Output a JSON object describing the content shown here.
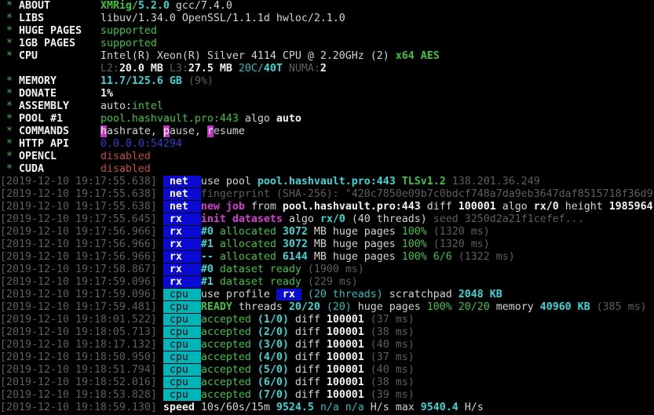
{
  "terminal": {
    "app": "XMRig console",
    "colors": {
      "white": "#d4d4d4",
      "white-bold": "#f2f2f2",
      "green": "#3ec43e",
      "cyan": "#2bbdbd",
      "cyan-bold": "#38d6d6",
      "magenta": "#d23fd2",
      "red": "#c44a4a",
      "gray": "#5f5f5f",
      "blue-text": "#3a3ad1",
      "tag-blue-bg": "#0a0ad2",
      "tag-teal-bg": "#00b5ba",
      "hotkey-bg": "#c433c4"
    },
    "summary": {
      "about": "XMRig/5.2.0 gcc/7.4.0",
      "libs": "libuv/1.34.0 OpenSSL/1.1.1d hwloc/2.1.0",
      "huge_pages": "supported",
      "one_gb_pages": "supported",
      "cpu": "Intel(R) Xeon(R) Silver 4114 CPU @ 2.20GHz (2) x64 AES",
      "cpu_cache": "L2:20.0 MB L3:27.5 MB 20C/40T NUMA:2",
      "memory": "11.7/125.6 GB (9%)",
      "donate": "1%",
      "assembly": "auto:intel",
      "pool1": "pool.hashvault.pro:443 algo auto",
      "commands": "hashrate, pause, resume",
      "http_api": "0.0.0.0:54294",
      "opencl": "disabled",
      "cuda": "disabled",
      "speed": "speed 10s/60s/15m 9524.5 n/a n/a H/s max 9540.4 H/s"
    },
    "lines": [
      {
        "name": "line-about",
        "segments": [
          [
            "g",
            " * "
          ],
          [
            "wb",
            "ABOUT        "
          ],
          [
            "gb",
            "XMRig/"
          ],
          [
            "cb",
            "5.2.0"
          ],
          [
            "w",
            " gcc/7.4.0"
          ]
        ]
      },
      {
        "name": "line-libs",
        "segments": [
          [
            "g",
            " * "
          ],
          [
            "wb",
            "LIBS         "
          ],
          [
            "w",
            "libuv/1.34.0 OpenSSL/1.1.1d hwloc/2.1.0"
          ]
        ]
      },
      {
        "name": "line-huge-pages",
        "segments": [
          [
            "g",
            " * "
          ],
          [
            "wb",
            "HUGE PAGES   "
          ],
          [
            "g",
            "supported"
          ]
        ]
      },
      {
        "name": "line-1gb-pages",
        "segments": [
          [
            "g",
            " * "
          ],
          [
            "wb",
            "1GB PAGES    "
          ],
          [
            "g",
            "supported"
          ]
        ]
      },
      {
        "name": "line-cpu",
        "segments": [
          [
            "g",
            " * "
          ],
          [
            "wb",
            "CPU          "
          ],
          [
            "w",
            "Intel(R) Xeon(R) Silver 4114 CPU @ 2.20GHz (2) "
          ],
          [
            "gb",
            "x64 AES"
          ]
        ]
      },
      {
        "name": "line-cpu-cache",
        "segments": [
          [
            "w",
            "                "
          ],
          [
            "gy",
            "L2:"
          ],
          [
            "wb",
            "20.0 MB "
          ],
          [
            "gy",
            "L3:"
          ],
          [
            "wb",
            "27.5 MB "
          ],
          [
            "c",
            "20C/"
          ],
          [
            "cb",
            "40T "
          ],
          [
            "gy",
            "NUMA:"
          ],
          [
            "wb",
            "2"
          ]
        ]
      },
      {
        "name": "line-memory",
        "segments": [
          [
            "g",
            " * "
          ],
          [
            "wb",
            "MEMORY       "
          ],
          [
            "cb",
            "11.7/125.6 GB "
          ],
          [
            "gy",
            "(9%)"
          ]
        ]
      },
      {
        "name": "line-donate",
        "segments": [
          [
            "g",
            " * "
          ],
          [
            "wb",
            "DONATE       "
          ],
          [
            "wb",
            "1%"
          ]
        ]
      },
      {
        "name": "line-assembly",
        "segments": [
          [
            "g",
            " * "
          ],
          [
            "wb",
            "ASSEMBLY     "
          ],
          [
            "w",
            "auto:"
          ],
          [
            "g",
            "intel"
          ]
        ]
      },
      {
        "name": "line-pool1",
        "segments": [
          [
            "g",
            " * "
          ],
          [
            "wb",
            "POOL #1      "
          ],
          [
            "g",
            "pool.hashvault.pro:443"
          ],
          [
            "w",
            " algo "
          ],
          [
            "wb",
            "auto"
          ]
        ]
      },
      {
        "name": "line-commands",
        "segments": [
          [
            "g",
            " * "
          ],
          [
            "wb",
            "COMMANDS     "
          ],
          [
            "hk",
            "h",
            "hotkey-hashrate"
          ],
          [
            "w",
            "ashrate, "
          ],
          [
            "hk",
            "p",
            "hotkey-pause"
          ],
          [
            "w",
            "ause, "
          ],
          [
            "hk",
            "r",
            "hotkey-resume"
          ],
          [
            "w",
            "esume"
          ]
        ]
      },
      {
        "name": "line-http-api",
        "segments": [
          [
            "g",
            " * "
          ],
          [
            "wb",
            "HTTP API     "
          ],
          [
            "bl",
            "0.0.0.0:54294"
          ]
        ]
      },
      {
        "name": "line-opencl",
        "segments": [
          [
            "g",
            " * "
          ],
          [
            "wb",
            "OPENCL       "
          ],
          [
            "r",
            "disabled"
          ]
        ]
      },
      {
        "name": "line-cuda",
        "segments": [
          [
            "g",
            " * "
          ],
          [
            "wb",
            "CUDA         "
          ],
          [
            "r",
            "disabled"
          ]
        ]
      },
      {
        "name": "log-use-pool",
        "segments": [
          [
            "gy",
            "[2019-12-10 19:17:55.638] "
          ],
          [
            "tag-net",
            " net  ",
            "net-tag"
          ],
          [
            "w",
            "use pool "
          ],
          [
            "cb",
            "pool.hashvault.pro:443 "
          ],
          [
            "gb",
            "TLSv1.2 "
          ],
          [
            "gy",
            "138.201.36.249"
          ]
        ]
      },
      {
        "name": "log-fingerprint",
        "segments": [
          [
            "gy",
            "[2019-12-10 19:17:55.638] "
          ],
          [
            "tag-net",
            " net  ",
            "net-tag"
          ],
          [
            "gy",
            "fingerprint (SHA-256): \"420c7850e09b7c0bdcf748a7da9eb3647daf8515718f36d9"
          ]
        ]
      },
      {
        "name": "log-new-job",
        "segments": [
          [
            "gy",
            "[2019-12-10 19:17:55.638] "
          ],
          [
            "tag-net",
            " net  ",
            "net-tag"
          ],
          [
            "m",
            "new job"
          ],
          [
            "w",
            " from "
          ],
          [
            "wb",
            "pool.hashvault.pro:443"
          ],
          [
            "w",
            " diff "
          ],
          [
            "wb",
            "100001"
          ],
          [
            "w",
            " algo "
          ],
          [
            "wb",
            "rx/0"
          ],
          [
            "w",
            " height "
          ],
          [
            "wb",
            "1985964"
          ]
        ]
      },
      {
        "name": "log-init-datasets",
        "segments": [
          [
            "gy",
            "[2019-12-10 19:17:55.645] "
          ],
          [
            "tag-rx",
            " rx   ",
            "rx-tag"
          ],
          [
            "m",
            "init datasets"
          ],
          [
            "w",
            " algo "
          ],
          [
            "cb",
            "rx/0 "
          ],
          [
            "w",
            "(40 threads)"
          ],
          [
            "gy",
            " seed 3250d2a21f1cefef..."
          ]
        ]
      },
      {
        "name": "log-allocated-0",
        "segments": [
          [
            "gy",
            "[2019-12-10 19:17:56.966] "
          ],
          [
            "tag-rx",
            " rx   ",
            "rx-tag"
          ],
          [
            "cb",
            "#0 "
          ],
          [
            "g",
            "allocated "
          ],
          [
            "cb",
            "3072 "
          ],
          [
            "w",
            "MB huge pages "
          ],
          [
            "g",
            "100%"
          ],
          [
            "gy",
            " (1320 ms)"
          ]
        ]
      },
      {
        "name": "log-allocated-1",
        "segments": [
          [
            "gy",
            "[2019-12-10 19:17:56.966] "
          ],
          [
            "tag-rx",
            " rx   ",
            "rx-tag"
          ],
          [
            "cb",
            "#1 "
          ],
          [
            "g",
            "allocated "
          ],
          [
            "cb",
            "3072 "
          ],
          [
            "w",
            "MB huge pages "
          ],
          [
            "g",
            "100%"
          ],
          [
            "gy",
            " (1320 ms)"
          ]
        ]
      },
      {
        "name": "log-allocated-total",
        "segments": [
          [
            "gy",
            "[2019-12-10 19:17:56.966] "
          ],
          [
            "tag-rx",
            " rx   ",
            "rx-tag"
          ],
          [
            "cb",
            "-- "
          ],
          [
            "g",
            "allocated "
          ],
          [
            "cb",
            "6144 "
          ],
          [
            "w",
            "MB huge pages "
          ],
          [
            "g",
            "100% 6/6"
          ],
          [
            "gy",
            " (1322 ms)"
          ]
        ]
      },
      {
        "name": "log-dataset-ready-0",
        "segments": [
          [
            "gy",
            "[2019-12-10 19:17:58.867] "
          ],
          [
            "tag-rx",
            " rx   ",
            "rx-tag"
          ],
          [
            "cb",
            "#0 "
          ],
          [
            "g",
            "dataset ready"
          ],
          [
            "gy",
            " (1900 ms)"
          ]
        ]
      },
      {
        "name": "log-dataset-ready-1",
        "segments": [
          [
            "gy",
            "[2019-12-10 19:17:59.096] "
          ],
          [
            "tag-rx",
            " rx   ",
            "rx-tag"
          ],
          [
            "cb",
            "#1 "
          ],
          [
            "g",
            "dataset ready"
          ],
          [
            "gy",
            " (229 ms)"
          ]
        ]
      },
      {
        "name": "log-use-profile",
        "segments": [
          [
            "gy",
            "[2019-12-10 19:17:59.096] "
          ],
          [
            "tag-cpu",
            " cpu  ",
            "cpu-tag"
          ],
          [
            "w",
            "use profile "
          ],
          [
            "tag-rx",
            " rx ",
            "rx-profile-tag"
          ],
          [
            "w",
            " "
          ],
          [
            "c",
            "(20 threads)"
          ],
          [
            "w",
            " scratchpad "
          ],
          [
            "cb",
            "2048 KB"
          ]
        ]
      },
      {
        "name": "log-ready-threads",
        "segments": [
          [
            "gy",
            "[2019-12-10 19:17:59.481] "
          ],
          [
            "tag-cpu",
            " cpu  ",
            "cpu-tag"
          ],
          [
            "gb",
            "READY"
          ],
          [
            "w",
            " threads "
          ],
          [
            "cb",
            "20/20"
          ],
          [
            "c",
            " (20)"
          ],
          [
            "w",
            " huge pages "
          ],
          [
            "g",
            "100% 20/20"
          ],
          [
            "w",
            " memory "
          ],
          [
            "cb",
            "40960 KB"
          ],
          [
            "gy",
            " (385 ms)"
          ]
        ]
      },
      {
        "name": "log-accepted-1",
        "segments": [
          [
            "gy",
            "[2019-12-10 19:18:01.522] "
          ],
          [
            "tag-cpu",
            " cpu  ",
            "cpu-tag"
          ],
          [
            "g",
            "accepted "
          ],
          [
            "cb",
            "(1/0)"
          ],
          [
            "w",
            " diff "
          ],
          [
            "wb",
            "100001"
          ],
          [
            "gy",
            " (37 ms)"
          ]
        ]
      },
      {
        "name": "log-accepted-2",
        "segments": [
          [
            "gy",
            "[2019-12-10 19:18:05.713] "
          ],
          [
            "tag-cpu",
            " cpu  ",
            "cpu-tag"
          ],
          [
            "g",
            "accepted "
          ],
          [
            "cb",
            "(2/0)"
          ],
          [
            "w",
            " diff "
          ],
          [
            "wb",
            "100001"
          ],
          [
            "gy",
            " (38 ms)"
          ]
        ]
      },
      {
        "name": "log-accepted-3",
        "segments": [
          [
            "gy",
            "[2019-12-10 19:18:17.132] "
          ],
          [
            "tag-cpu",
            " cpu  ",
            "cpu-tag"
          ],
          [
            "g",
            "accepted "
          ],
          [
            "cb",
            "(3/0)"
          ],
          [
            "w",
            " diff "
          ],
          [
            "wb",
            "100001"
          ],
          [
            "gy",
            " (40 ms)"
          ]
        ]
      },
      {
        "name": "log-accepted-4",
        "segments": [
          [
            "gy",
            "[2019-12-10 19:18:50.950] "
          ],
          [
            "tag-cpu",
            " cpu  ",
            "cpu-tag"
          ],
          [
            "g",
            "accepted "
          ],
          [
            "cb",
            "(4/0)"
          ],
          [
            "w",
            " diff "
          ],
          [
            "wb",
            "100001"
          ],
          [
            "gy",
            " (37 ms)"
          ]
        ]
      },
      {
        "name": "log-accepted-5",
        "segments": [
          [
            "gy",
            "[2019-12-10 19:18:51.794] "
          ],
          [
            "tag-cpu",
            " cpu  ",
            "cpu-tag"
          ],
          [
            "g",
            "accepted "
          ],
          [
            "cb",
            "(5/0)"
          ],
          [
            "w",
            " diff "
          ],
          [
            "wb",
            "100001"
          ],
          [
            "gy",
            " (40 ms)"
          ]
        ]
      },
      {
        "name": "log-accepted-6",
        "segments": [
          [
            "gy",
            "[2019-12-10 19:18:52.016] "
          ],
          [
            "tag-cpu",
            " cpu  ",
            "cpu-tag"
          ],
          [
            "g",
            "accepted "
          ],
          [
            "cb",
            "(6/0)"
          ],
          [
            "w",
            " diff "
          ],
          [
            "wb",
            "100001"
          ],
          [
            "gy",
            " (38 ms)"
          ]
        ]
      },
      {
        "name": "log-accepted-7",
        "segments": [
          [
            "gy",
            "[2019-12-10 19:18:53.828] "
          ],
          [
            "tag-cpu",
            " cpu  ",
            "cpu-tag"
          ],
          [
            "g",
            "accepted "
          ],
          [
            "cb",
            "(7/0)"
          ],
          [
            "w",
            " diff "
          ],
          [
            "wb",
            "100001"
          ],
          [
            "gy",
            " (39 ms)"
          ]
        ]
      },
      {
        "name": "log-speed",
        "segments": [
          [
            "gy",
            "[2019-12-10 19:18:59.130] "
          ],
          [
            "wb",
            "speed"
          ],
          [
            "w",
            " 10s/60s/15m "
          ],
          [
            "cb",
            "9524.5"
          ],
          [
            "c",
            " n/a n/a "
          ],
          [
            "w",
            "H/s max "
          ],
          [
            "cb",
            "9540.4"
          ],
          [
            "w",
            " H/s"
          ]
        ]
      }
    ]
  }
}
